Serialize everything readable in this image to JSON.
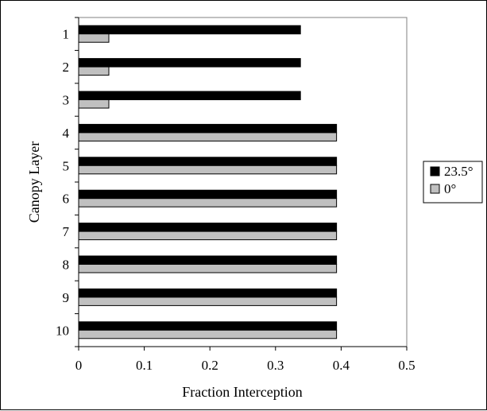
{
  "chart_data": {
    "type": "bar",
    "orientation": "horizontal",
    "title": "",
    "xlabel": "Fraction Interception",
    "ylabel": "Canopy Layer",
    "categories": [
      "1",
      "2",
      "3",
      "4",
      "5",
      "6",
      "7",
      "8",
      "9",
      "10"
    ],
    "series": [
      {
        "name": "23.5°",
        "color": "#000000",
        "values": [
          0.338,
          0.338,
          0.338,
          0.393,
          0.393,
          0.393,
          0.393,
          0.393,
          0.393,
          0.393
        ]
      },
      {
        "name": "0°",
        "color": "#c0c0c0",
        "values": [
          0.046,
          0.046,
          0.046,
          0.393,
          0.393,
          0.393,
          0.393,
          0.393,
          0.393,
          0.393
        ]
      }
    ],
    "xlim": [
      0,
      0.5
    ],
    "xticks": [
      "0",
      "0.1",
      "0.2",
      "0.3",
      "0.4",
      "0.5"
    ],
    "grid": false,
    "legend_position": "right"
  }
}
